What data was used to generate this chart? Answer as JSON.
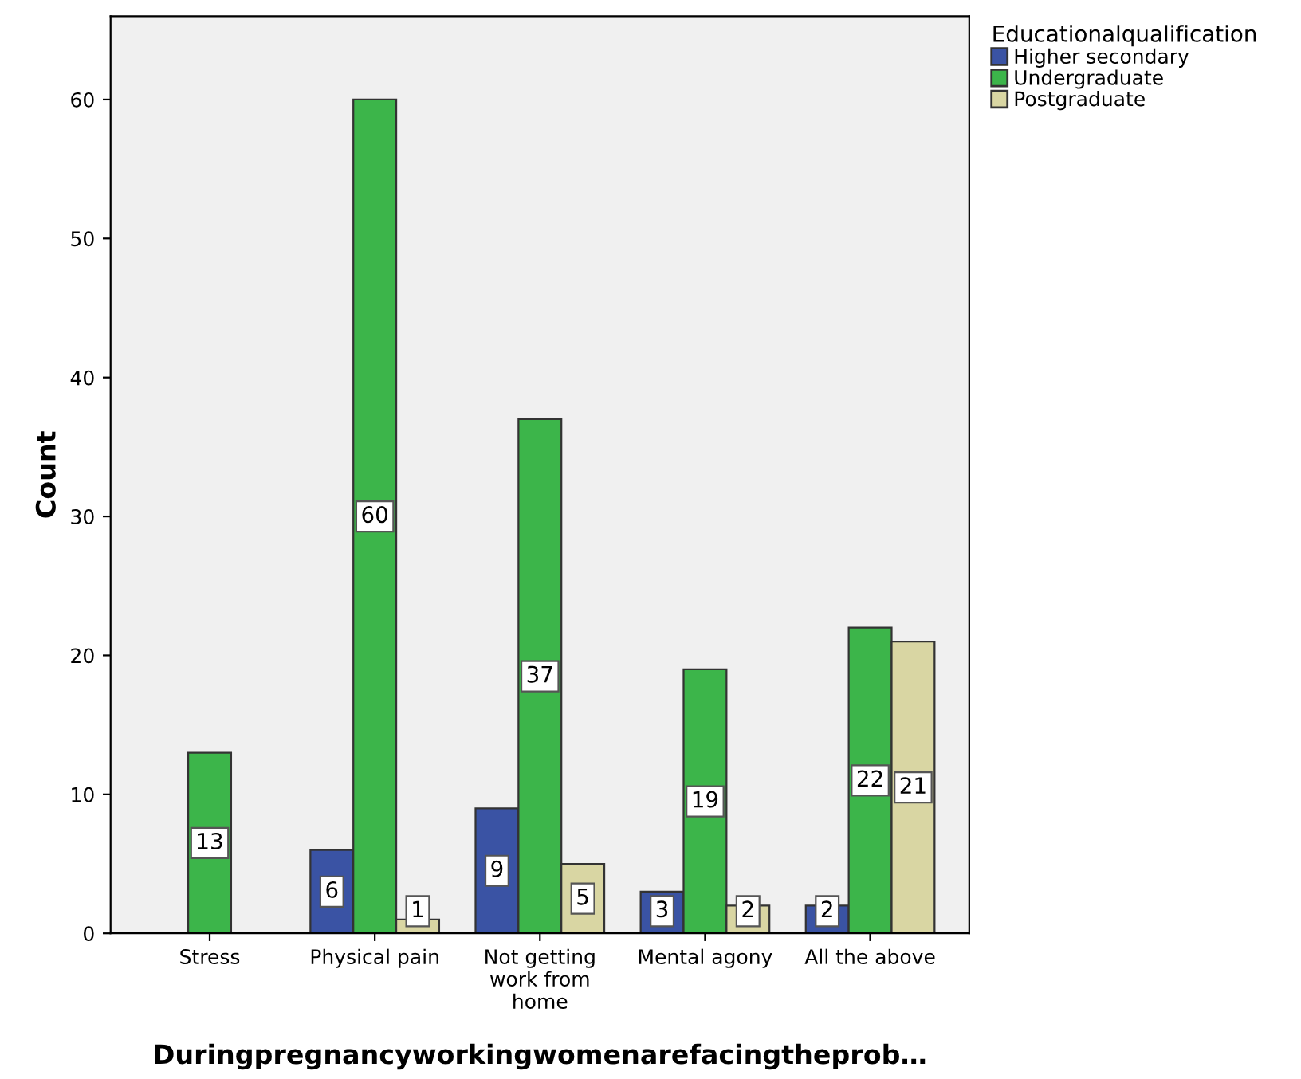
{
  "chart_data": {
    "type": "bar",
    "xlabel": "Duringpregnancyworkingwomenarefacingtheprob…",
    "ylabel": "Count",
    "legend_title": "Educationalqualification",
    "categories": [
      "Stress",
      "Physical pain",
      "Not getting\nwork from\nhome",
      "Mental agony",
      "All the above"
    ],
    "series": [
      {
        "name": "Higher secondary",
        "color": "#3a53a4",
        "values": [
          null,
          6,
          9,
          3,
          2
        ]
      },
      {
        "name": "Undergraduate",
        "color": "#3cb54a",
        "values": [
          13,
          60,
          37,
          19,
          22
        ]
      },
      {
        "name": "Postgraduate",
        "color": "#d9d6a3",
        "values": [
          null,
          1,
          5,
          2,
          21
        ]
      }
    ],
    "ylim": [
      0,
      66
    ],
    "yticks": [
      0,
      10,
      20,
      30,
      40,
      50,
      60
    ],
    "grid": false,
    "legend": "top right",
    "data_labels": true
  }
}
